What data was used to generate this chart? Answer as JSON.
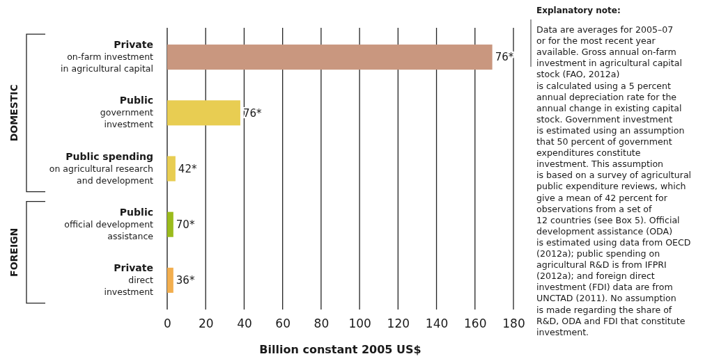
{
  "chart_data": {
    "type": "bar",
    "orientation": "horizontal",
    "categories": [
      "Private\non-farm investment\nin agricultural capital",
      "Public\ngovernment\ninvestment",
      "Public spending\non agricultural research\nand development",
      "Public\nofficial development\nassistance",
      "Private\ndirect\ninvestment"
    ],
    "values": [
      169,
      38,
      4.3,
      3.2,
      3.2
    ],
    "colors": [
      "#c9977f",
      "#e8cd52",
      "#e8cd52",
      "#9bbb1c",
      "#f2ae4e"
    ],
    "xlim": [
      0,
      180
    ],
    "xticks": [
      0,
      20,
      40,
      60,
      80,
      100,
      120,
      140,
      160,
      180
    ],
    "grid": "x",
    "xlabel": "Billion constant 2005 US$",
    "annotations": [
      "DOMESTIC",
      "FOREIGN",
      "Explanatory note:",
      "76*",
      "76*",
      "42*",
      "70*",
      "36*",
      "Data are averages for 2005–07\nor for the most recent year\navailable. Gross annual on-farm\ninvestment in agricultural capital\nstock (FAO, 2012a)\nis calculated using a 5 percent\nannual depreciation rate for the\nannual change in existing capital\nstock. Government investment\nis estimated using an assumption\nthat 50 percent of government\nexpenditures constitute\ninvestment. This assumption\nis based on a survey of agricultural\npublic expenditure reviews, which\ngive a mean of 42 percent for\nobservations from a set of\n12 countries (see Box 5). Official\ndevelopment assistance (ODA)\nis estimated using data from OECD\n(2012a); public spending on\nagricultural R&D is from IFPRI\n(2012a); and foreign direct\ninvestment (FDI) data are from\nUNCTAD (2011). No assumption\nis made regarding the share of\nR&D, ODA and FDI that constitute\ninvestment."
    ]
  }
}
